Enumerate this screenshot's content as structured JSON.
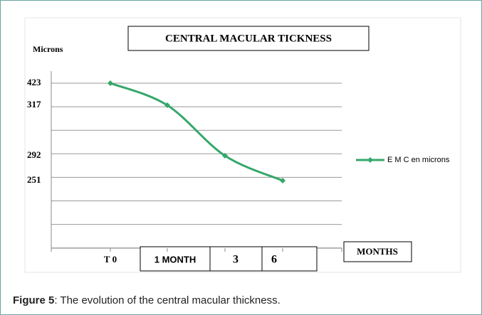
{
  "chart_data": {
    "type": "line",
    "title": "CENTRAL MACULAR TICKNESS",
    "y_label": "Microns",
    "x_label": "MONTHS",
    "categories": [
      "T 0",
      "1 MONTH",
      "3",
      "6"
    ],
    "series": [
      {
        "name": "E M C en microns",
        "color": "#36a76b",
        "values": [
          423,
          317,
          292,
          251
        ]
      }
    ],
    "yticks": [
      423,
      317,
      292,
      251
    ],
    "legend": "right"
  },
  "caption": {
    "label": "Figure 5",
    "text": ": The evolution of the central macular thickness."
  }
}
